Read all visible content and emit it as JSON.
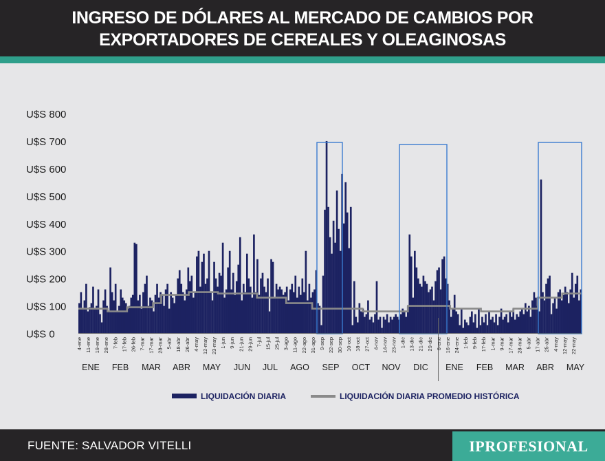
{
  "header": {
    "title_line1": "INGRESO DE DÓLARES AL MERCADO DE CAMBIOS POR",
    "title_line2": "EXPORTADORES DE CEREALES Y OLEAGINOSAS"
  },
  "footer": {
    "source": "FUENTE: SALVADOR VITELLI",
    "brand": "IPROFESIONAL"
  },
  "colors": {
    "bar": "#1c2261",
    "line": "#8a8a8a",
    "highlight_box": "#3a7bd0",
    "header_bg": "#262426",
    "accent": "#2f9f8b",
    "brand_bg": "#3cab97"
  },
  "chart_data": {
    "type": "bar",
    "title": "INGRESO DE DÓLARES AL MERCADO DE CAMBIOS POR EXPORTADORES DE CEREALES Y OLEAGINOSAS",
    "ylabel": "",
    "xlabel": "",
    "ylim": [
      0,
      800
    ],
    "y_ticks": [
      "U$S 0",
      "U$S 100",
      "U$S 200",
      "U$S 300",
      "U$S 400",
      "U$S 500",
      "U$S 600",
      "U$S 700",
      "U$S 800"
    ],
    "y_tick_values": [
      0,
      100,
      200,
      300,
      400,
      500,
      600,
      700,
      800
    ],
    "date_ticks": [
      "4-ene",
      "11-ene",
      "19-ene",
      "28-ene",
      "7-feb",
      "17-feb",
      "26-feb",
      "7-mar",
      "17-mar",
      "28-mar",
      "5-abr",
      "18-abr",
      "26-abr",
      "4-may",
      "12-may",
      "23-may",
      "1-jun",
      "9-jun",
      "21-jun",
      "29-jun",
      "7-jul",
      "15-jul",
      "25-jul",
      "3-ago",
      "11-ago",
      "22-ago",
      "31-ago",
      "9-sep",
      "22-sep",
      "30-sep",
      "10-oct",
      "18-oct",
      "27-oct",
      "4-nov",
      "14-nov",
      "23-nov",
      "1-dic",
      "13-dic",
      "21-dic",
      "29-dic",
      "6-ene",
      "16-ene",
      "24-ene",
      "1-feb",
      "9-feb",
      "17-feb",
      "1-mar",
      "9-mar",
      "17-mar",
      "28-mar",
      "5-abr",
      "17-abr",
      "25-abr",
      "4-may",
      "12-may",
      "22-may"
    ],
    "months": [
      "ENE",
      "FEB",
      "MAR",
      "ABR",
      "MAY",
      "JUN",
      "JUL",
      "AGO",
      "SEP",
      "OCT",
      "NOV",
      "DIC",
      "ENE",
      "FEB",
      "MAR",
      "ABR",
      "MAY"
    ],
    "highlights": [
      "SEP",
      "DIC",
      "ABR-MAY"
    ],
    "series": [
      {
        "name": "LIQUIDACIÓN DIARIA",
        "type": "bar",
        "values": [
          110,
          150,
          90,
          120,
          180,
          80,
          95,
          110,
          170,
          90,
          100,
          160,
          70,
          40,
          120,
          160,
          100,
          80,
          240,
          150,
          120,
          180,
          80,
          100,
          160,
          130,
          120,
          110,
          90,
          100,
          130,
          140,
          330,
          325,
          120,
          140,
          90,
          150,
          180,
          210,
          100,
          130,
          120,
          80,
          140,
          180,
          130,
          150,
          140,
          100,
          160,
          180,
          90,
          150,
          130,
          110,
          140,
          200,
          230,
          180,
          150,
          120,
          160,
          240,
          190,
          210,
          130,
          150,
          280,
          300,
          170,
          260,
          290,
          180,
          200,
          300,
          150,
          120,
          260,
          200,
          170,
          220,
          210,
          330,
          130,
          160,
          240,
          300,
          160,
          220,
          140,
          190,
          250,
          350,
          120,
          180,
          150,
          290,
          200,
          170,
          130,
          360,
          150,
          270,
          140,
          200,
          220,
          170,
          150,
          200,
          80,
          270,
          260,
          130,
          180,
          160,
          170,
          160,
          140,
          150,
          170,
          120,
          160,
          180,
          150,
          210,
          130,
          170,
          140,
          200,
          150,
          300,
          120,
          180,
          130,
          150,
          160,
          230,
          110,
          100,
          30,
          210,
          450,
          700,
          460,
          350,
          290,
          410,
          330,
          520,
          380,
          300,
          580,
          400,
          550,
          440,
          310,
          460,
          30,
          190,
          60,
          40,
          110,
          80,
          90,
          60,
          70,
          120,
          50,
          60,
          40,
          70,
          190,
          50,
          60,
          20,
          60,
          50,
          70,
          40,
          60,
          50,
          60,
          70,
          60,
          50,
          70,
          90,
          80,
          60,
          100,
          360,
          280,
          130,
          300,
          240,
          200,
          180,
          170,
          210,
          190,
          180,
          150,
          160,
          170,
          120,
          190,
          230,
          240,
          160,
          270,
          280,
          200,
          180,
          120,
          60,
          90,
          140,
          80,
          70,
          30,
          90,
          20,
          50,
          40,
          30,
          60,
          80,
          40,
          70,
          20,
          90,
          30,
          60,
          40,
          70,
          30,
          80,
          50,
          60,
          40,
          70,
          30,
          60,
          90,
          50,
          60,
          70,
          40,
          80,
          60,
          90,
          50,
          70,
          60,
          80,
          90,
          70,
          110,
          80,
          100,
          60,
          120,
          150,
          130,
          100,
          80,
          560,
          150,
          120,
          180,
          200,
          210,
          70,
          110,
          130,
          90,
          150,
          160,
          120,
          140,
          170,
          150,
          110,
          160,
          220,
          130,
          180,
          210,
          120,
          160
        ],
        "color": "#1c2261"
      },
      {
        "name": "LIQUIDACIÓN DIARIA PROMEDIO HISTÓRICA",
        "type": "line",
        "values": [
          90,
          90,
          90,
          90,
          90,
          90,
          90,
          90,
          90,
          90,
          90,
          90,
          90,
          90,
          90,
          90,
          90,
          90,
          80,
          80,
          80,
          80,
          80,
          80,
          80,
          80,
          80,
          80,
          80,
          80,
          95,
          95,
          95,
          95,
          95,
          95,
          95,
          95,
          95,
          95,
          95,
          95,
          95,
          95,
          95,
          95,
          110,
          110,
          110,
          110,
          110,
          140,
          140,
          140,
          140,
          140,
          140,
          140,
          140,
          140,
          140,
          140,
          140,
          140,
          140,
          140,
          140,
          140,
          150,
          150,
          150,
          150,
          150,
          150,
          150,
          150,
          150,
          150,
          150,
          150,
          150,
          150,
          150,
          150,
          150,
          150,
          145,
          145,
          145,
          145,
          145,
          145,
          145,
          145,
          145,
          145,
          145,
          145,
          145,
          145,
          145,
          145,
          145,
          145,
          145,
          145,
          145,
          145,
          145,
          145,
          130,
          130,
          130,
          130,
          130,
          130,
          130,
          130,
          130,
          130,
          130,
          130,
          130,
          130,
          130,
          130,
          130,
          130,
          110,
          110,
          110,
          110,
          110,
          110,
          110,
          110,
          110,
          110,
          110,
          110,
          110,
          110,
          110,
          110,
          90,
          90,
          90,
          90,
          90,
          90,
          90,
          90,
          90,
          90,
          90,
          90,
          90,
          90,
          90,
          90,
          90,
          90,
          90,
          90,
          90,
          90,
          90,
          90,
          90,
          90,
          90,
          90,
          90,
          90,
          90,
          80,
          80,
          80,
          80,
          80,
          80,
          80,
          80,
          80,
          80,
          80,
          80,
          80,
          80,
          80,
          80,
          80,
          80,
          80,
          80,
          80,
          80,
          80,
          80,
          80,
          80,
          80,
          80,
          100,
          100,
          100,
          100,
          100,
          100,
          100,
          100,
          100,
          100,
          100,
          100,
          100,
          100,
          100,
          100,
          100,
          100,
          100,
          100,
          100,
          100,
          100,
          100,
          100,
          100,
          90,
          90,
          90,
          90,
          90,
          90,
          90,
          90,
          90,
          90,
          90,
          90,
          90,
          90,
          90,
          90,
          90,
          90,
          90,
          80,
          80,
          80,
          80,
          80,
          80,
          80,
          80,
          80,
          80,
          80,
          80,
          80,
          80,
          80,
          80,
          80,
          80,
          80,
          80,
          90,
          90,
          90,
          90,
          90,
          90,
          90,
          90,
          90,
          90,
          90,
          90,
          90,
          90,
          90,
          130,
          130,
          130,
          130,
          130,
          130,
          130,
          130,
          130,
          130,
          130,
          130,
          130,
          130,
          130,
          145,
          145,
          145,
          145,
          145,
          145,
          145,
          145,
          145,
          145,
          145,
          145
        ],
        "color": "#8a8a8a"
      }
    ]
  }
}
